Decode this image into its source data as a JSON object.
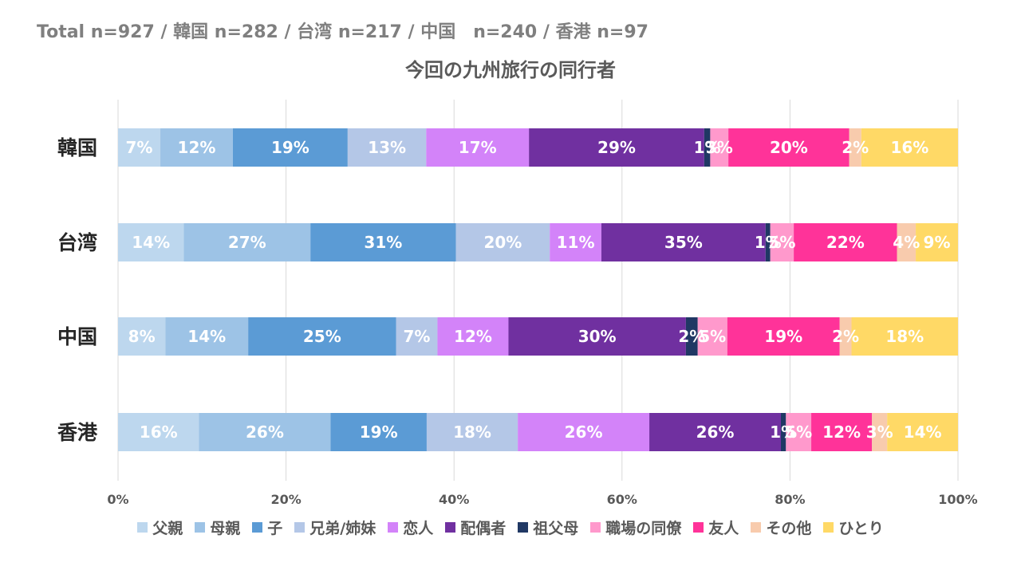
{
  "header": {
    "sample_note": "Total n=927 / 韓国 n=282 / 台湾 n=217 / 中国　n=240 / 香港 n=97"
  },
  "chart_data": {
    "type": "bar",
    "orientation": "horizontal",
    "stacked": "percent",
    "title": "今回の九州旅行の同行者",
    "xlabel": "",
    "ylabel": "",
    "xlim": [
      0,
      100
    ],
    "x_ticks": [
      "0%",
      "20%",
      "40%",
      "60%",
      "80%",
      "100%"
    ],
    "grid": true,
    "legend_position": "bottom",
    "categories": [
      "韓国",
      "台湾",
      "中国",
      "香港"
    ],
    "series": [
      {
        "name": "父親",
        "color": "#bdd7ee",
        "values": [
          7,
          14,
          8,
          16
        ],
        "labels": [
          "7%",
          "14%",
          "8%",
          "16%"
        ]
      },
      {
        "name": "母親",
        "color": "#9dc3e6",
        "values": [
          12,
          27,
          14,
          26
        ],
        "labels": [
          "12%",
          "27%",
          "14%",
          "26%"
        ]
      },
      {
        "name": "子",
        "color": "#5b9bd5",
        "values": [
          19,
          31,
          25,
          19
        ],
        "labels": [
          "19%",
          "31%",
          "25%",
          "19%"
        ]
      },
      {
        "name": "兄弟/姉妹",
        "color": "#b4c7e7",
        "values": [
          13,
          20,
          7,
          18
        ],
        "labels": [
          "13%",
          "20%",
          "7%",
          "18%"
        ]
      },
      {
        "name": "恋人",
        "color": "#d383f9",
        "values": [
          17,
          11,
          12,
          26
        ],
        "labels": [
          "17%",
          "11%",
          "12%",
          "26%"
        ]
      },
      {
        "name": "配偶者",
        "color": "#7030a0",
        "values": [
          29,
          35,
          30,
          26
        ],
        "labels": [
          "29%",
          "35%",
          "30%",
          "26%"
        ]
      },
      {
        "name": "祖父母",
        "color": "#203864",
        "values": [
          1,
          1,
          2,
          1
        ],
        "labels": [
          "1%",
          "1%",
          "2%",
          "1%"
        ]
      },
      {
        "name": "職場の同僚",
        "color": "#ff99cc",
        "values": [
          3,
          5,
          5,
          5
        ],
        "labels": [
          "3%",
          "5%",
          "5%",
          "5%"
        ]
      },
      {
        "name": "友人",
        "color": "#ff3399",
        "values": [
          20,
          22,
          19,
          12
        ],
        "labels": [
          "20%",
          "22%",
          "19%",
          "12%"
        ]
      },
      {
        "name": "その他",
        "color": "#f8cbad",
        "values": [
          2,
          4,
          2,
          3
        ],
        "labels": [
          "2%",
          "4%",
          "2%",
          "3%"
        ]
      },
      {
        "name": "ひとり",
        "color": "#ffd966",
        "values": [
          16,
          9,
          18,
          14
        ],
        "labels": [
          "16%",
          "9%",
          "18%",
          "14%"
        ]
      }
    ]
  }
}
